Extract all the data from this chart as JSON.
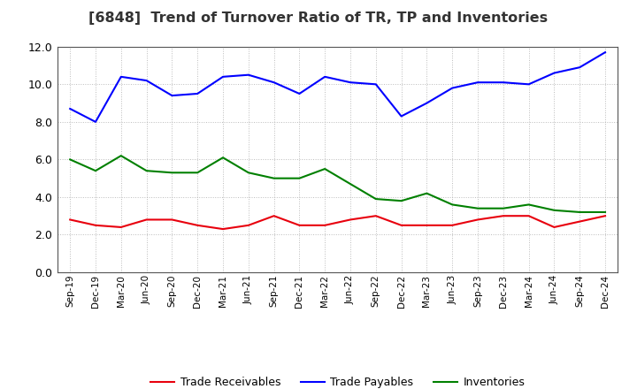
{
  "title": "[6848]  Trend of Turnover Ratio of TR, TP and Inventories",
  "x_labels": [
    "Sep-19",
    "Dec-19",
    "Mar-20",
    "Jun-20",
    "Sep-20",
    "Dec-20",
    "Mar-21",
    "Jun-21",
    "Sep-21",
    "Dec-21",
    "Mar-22",
    "Jun-22",
    "Sep-22",
    "Dec-22",
    "Mar-23",
    "Jun-23",
    "Sep-23",
    "Dec-23",
    "Mar-24",
    "Jun-24",
    "Sep-24",
    "Dec-24"
  ],
  "trade_receivables": [
    2.8,
    2.5,
    2.4,
    2.8,
    2.8,
    2.5,
    2.3,
    2.5,
    3.0,
    2.5,
    2.5,
    2.8,
    3.0,
    2.5,
    2.5,
    2.5,
    2.8,
    3.0,
    3.0,
    2.4,
    2.7,
    3.0
  ],
  "trade_payables": [
    8.7,
    8.0,
    10.4,
    10.2,
    9.4,
    9.5,
    10.4,
    10.5,
    10.1,
    9.5,
    10.4,
    10.1,
    10.0,
    8.3,
    9.0,
    9.8,
    10.1,
    10.1,
    10.0,
    10.6,
    10.9,
    11.7
  ],
  "inventories": [
    6.0,
    5.4,
    6.2,
    5.4,
    5.3,
    5.3,
    6.1,
    5.3,
    5.0,
    5.0,
    5.5,
    4.7,
    3.9,
    3.8,
    4.2,
    3.6,
    3.4,
    3.4,
    3.6,
    3.3,
    3.2,
    3.2
  ],
  "tr_color": "#e8000d",
  "tp_color": "#0000ff",
  "inv_color": "#008000",
  "tr_label": "Trade Receivables",
  "tp_label": "Trade Payables",
  "inv_label": "Inventories",
  "ylim": [
    0.0,
    12.0
  ],
  "yticks": [
    0.0,
    2.0,
    4.0,
    6.0,
    8.0,
    10.0,
    12.0
  ],
  "background_color": "#ffffff",
  "grid_color": "#aaaaaa",
  "line_width": 1.5,
  "title_fontsize": 11.5
}
